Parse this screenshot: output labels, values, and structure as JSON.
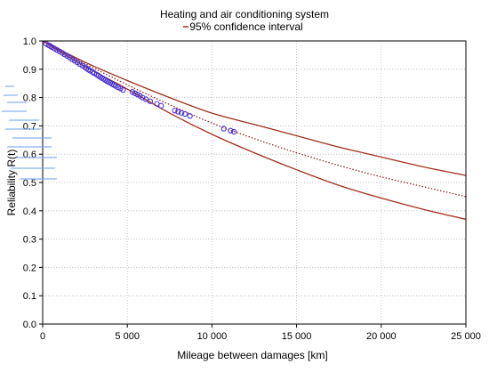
{
  "chart_data": {
    "type": "line",
    "title": "Heating and air conditioning system",
    "subtitle": "95% confidence interval",
    "xlabel": "Mileage between damages [km]",
    "ylabel": "Reliability R(t)",
    "xlim": [
      0,
      25000
    ],
    "ylim": [
      0.0,
      1.0
    ],
    "x_ticks": [
      0,
      5000,
      10000,
      15000,
      20000,
      25000
    ],
    "x_tick_labels": [
      "0",
      "5 000",
      "10 000",
      "15 000",
      "20 000",
      "25 000"
    ],
    "y_ticks": [
      0.0,
      0.1,
      0.2,
      0.3,
      0.4,
      0.5,
      0.6,
      0.7,
      0.8,
      0.9,
      1.0
    ],
    "y_tick_labels": [
      "0.0",
      "0.1",
      "0.2",
      "0.3",
      "0.4",
      "0.5",
      "0.6",
      "0.7",
      "0.8",
      "0.9",
      "1.0"
    ],
    "grid": true,
    "series": [
      {
        "role": "fit",
        "style": "dotted",
        "color": "#8b1a1a",
        "x": [
          0,
          2500,
          5000,
          7500,
          10000,
          12500,
          15000,
          17500,
          20000,
          22500,
          25000
        ],
        "y": [
          1.0,
          0.92,
          0.845,
          0.775,
          0.71,
          0.655,
          0.605,
          0.56,
          0.52,
          0.485,
          0.45
        ]
      },
      {
        "role": "upper-ci",
        "style": "solid",
        "color": "#a0301e",
        "x": [
          0,
          2500,
          5000,
          7500,
          10000,
          12500,
          15000,
          17500,
          20000,
          22500,
          25000
        ],
        "y": [
          1.0,
          0.925,
          0.86,
          0.8,
          0.745,
          0.705,
          0.665,
          0.625,
          0.59,
          0.555,
          0.525
        ]
      },
      {
        "role": "lower-ci",
        "style": "solid",
        "color": "#a0301e",
        "x": [
          0,
          2500,
          5000,
          7500,
          10000,
          12500,
          15000,
          17500,
          20000,
          22500,
          25000
        ],
        "y": [
          1.0,
          0.91,
          0.83,
          0.745,
          0.67,
          0.605,
          0.545,
          0.49,
          0.445,
          0.405,
          0.37
        ]
      },
      {
        "role": "observations",
        "style": "markers",
        "color": "#4a2fd0",
        "x": [
          200,
          350,
          450,
          550,
          700,
          850,
          1000,
          1150,
          1300,
          1450,
          1600,
          1750,
          1900,
          2050,
          2200,
          2350,
          2500,
          2600,
          2700,
          2800,
          2950,
          3050,
          3200,
          3300,
          3400,
          3500,
          3600,
          3700,
          3800,
          3900,
          4000,
          4100,
          4200,
          4300,
          4450,
          4600,
          4750,
          5300,
          5450,
          5600,
          5750,
          5900,
          6100,
          6350,
          6750,
          7000,
          7800,
          8000,
          8200,
          8400,
          8700,
          10700,
          11100,
          11300
        ],
        "y": [
          0.99,
          0.985,
          0.982,
          0.978,
          0.973,
          0.968,
          0.963,
          0.958,
          0.952,
          0.947,
          0.941,
          0.935,
          0.93,
          0.924,
          0.918,
          0.913,
          0.907,
          0.903,
          0.899,
          0.895,
          0.89,
          0.886,
          0.881,
          0.877,
          0.873,
          0.869,
          0.866,
          0.862,
          0.858,
          0.855,
          0.852,
          0.848,
          0.845,
          0.841,
          0.836,
          0.832,
          0.827,
          0.82,
          0.815,
          0.811,
          0.806,
          0.8,
          0.794,
          0.787,
          0.778,
          0.771,
          0.754,
          0.75,
          0.746,
          0.742,
          0.735,
          0.69,
          0.683,
          0.679
        ]
      }
    ]
  }
}
